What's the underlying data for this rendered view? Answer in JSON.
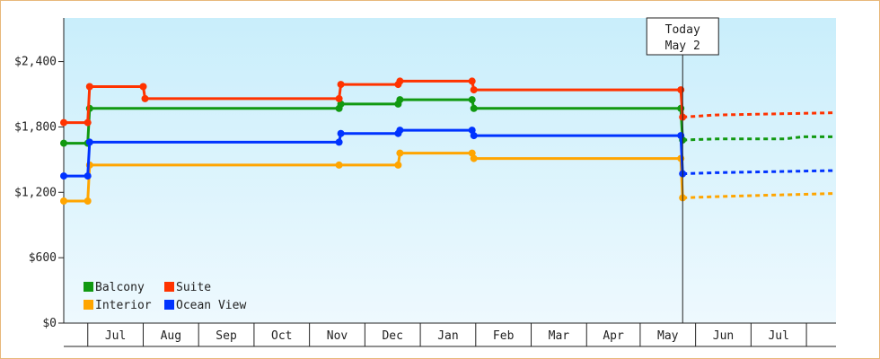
{
  "chart_data": {
    "type": "line",
    "title": "",
    "xlabel": "",
    "ylabel": "",
    "ylim": [
      0,
      2800
    ],
    "y_ticks": [
      {
        "value": 0,
        "label": "$0"
      },
      {
        "value": 600,
        "label": "$600"
      },
      {
        "value": 1200,
        "label": "$1,200"
      },
      {
        "value": 1800,
        "label": "$1,800"
      },
      {
        "value": 2400,
        "label": "$2,400"
      }
    ],
    "x_range": [
      "2017-06-01",
      "2018-07-24"
    ],
    "months": [
      {
        "label": "Jul",
        "start": "2017-07-01"
      },
      {
        "label": "Aug",
        "start": "2017-08-01"
      },
      {
        "label": "Sep",
        "start": "2017-09-01"
      },
      {
        "label": "Oct",
        "start": "2017-10-01"
      },
      {
        "label": "Nov",
        "start": "2017-11-01"
      },
      {
        "label": "Dec",
        "start": "2017-12-01"
      },
      {
        "label": "Jan",
        "start": "2018-01-01"
      },
      {
        "label": "Feb",
        "start": "2018-02-01"
      },
      {
        "label": "Mar",
        "start": "2018-03-01"
      },
      {
        "label": "Apr",
        "start": "2018-04-01"
      },
      {
        "label": "May",
        "start": "2018-05-01"
      },
      {
        "label": "Jun",
        "start": "2018-06-01"
      },
      {
        "label": "Jul",
        "start": "2018-07-01"
      }
    ],
    "month_boundaries": [
      "2017-06-14",
      "2017-07-14",
      "2017-08-13",
      "2017-09-12",
      "2017-10-12",
      "2017-11-11",
      "2017-12-11",
      "2018-01-10",
      "2018-02-09",
      "2018-03-11",
      "2018-04-09",
      "2018-05-09",
      "2018-06-08",
      "2018-07-08"
    ],
    "today": {
      "date": "2018-05-02",
      "line1": "Today",
      "line2": "May 2"
    },
    "grid": false,
    "legend_position": "bottom-left",
    "series": [
      {
        "name": "Balcony",
        "color": "#119911",
        "points": [
          [
            "2017-06-01",
            1650
          ],
          [
            "2017-06-14",
            1650
          ],
          [
            "2017-06-15",
            1970
          ],
          [
            "2017-10-28",
            1970
          ],
          [
            "2017-10-29",
            2010
          ],
          [
            "2017-11-29",
            2010
          ],
          [
            "2017-11-30",
            2050
          ],
          [
            "2018-01-08",
            2050
          ],
          [
            "2018-01-09",
            1970
          ],
          [
            "2018-05-01",
            1970
          ],
          [
            "2018-05-02",
            1680
          ]
        ],
        "forecast": [
          [
            "2018-05-02",
            1680
          ],
          [
            "2018-05-20",
            1690
          ],
          [
            "2018-06-26",
            1690
          ],
          [
            "2018-07-06",
            1710
          ],
          [
            "2018-07-24",
            1710
          ]
        ]
      },
      {
        "name": "Suite",
        "color": "#ff3300",
        "points": [
          [
            "2017-06-01",
            1840
          ],
          [
            "2017-06-14",
            1840
          ],
          [
            "2017-06-15",
            2170
          ],
          [
            "2017-07-14",
            2170
          ],
          [
            "2017-07-15",
            2060
          ],
          [
            "2017-10-28",
            2060
          ],
          [
            "2017-10-29",
            2190
          ],
          [
            "2017-11-29",
            2190
          ],
          [
            "2017-11-30",
            2220
          ],
          [
            "2018-01-08",
            2220
          ],
          [
            "2018-01-09",
            2140
          ],
          [
            "2018-05-01",
            2140
          ],
          [
            "2018-05-02",
            1890
          ]
        ],
        "forecast": [
          [
            "2018-05-02",
            1890
          ],
          [
            "2018-05-20",
            1910
          ],
          [
            "2018-07-24",
            1930
          ]
        ]
      },
      {
        "name": "Interior",
        "color": "#ffa500",
        "points": [
          [
            "2017-06-01",
            1120
          ],
          [
            "2017-06-14",
            1120
          ],
          [
            "2017-06-15",
            1450
          ],
          [
            "2017-10-28",
            1450
          ],
          [
            "2017-11-29",
            1450
          ],
          [
            "2017-11-30",
            1560
          ],
          [
            "2018-01-08",
            1560
          ],
          [
            "2018-01-09",
            1510
          ],
          [
            "2018-05-01",
            1510
          ],
          [
            "2018-05-02",
            1150
          ]
        ],
        "forecast": [
          [
            "2018-05-02",
            1150
          ],
          [
            "2018-05-20",
            1160
          ],
          [
            "2018-07-24",
            1190
          ]
        ]
      },
      {
        "name": "Ocean View",
        "color": "#0033ff",
        "points": [
          [
            "2017-06-01",
            1350
          ],
          [
            "2017-06-14",
            1350
          ],
          [
            "2017-06-15",
            1660
          ],
          [
            "2017-10-28",
            1660
          ],
          [
            "2017-10-29",
            1740
          ],
          [
            "2017-11-29",
            1740
          ],
          [
            "2017-11-30",
            1770
          ],
          [
            "2018-01-08",
            1770
          ],
          [
            "2018-01-09",
            1720
          ],
          [
            "2018-05-01",
            1720
          ],
          [
            "2018-05-02",
            1370
          ]
        ],
        "forecast": [
          [
            "2018-05-02",
            1370
          ],
          [
            "2018-05-20",
            1380
          ],
          [
            "2018-07-24",
            1400
          ]
        ]
      }
    ]
  }
}
